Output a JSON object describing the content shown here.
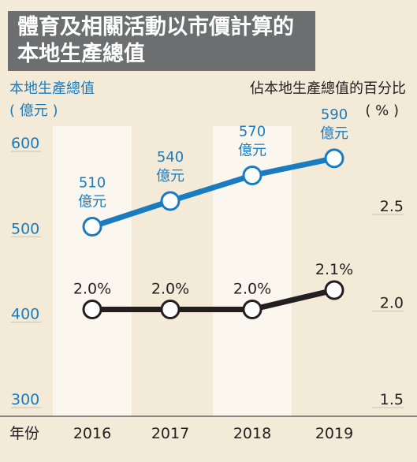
{
  "title_lines": [
    "體育及相關活動以市價計算的",
    "本地生產總值"
  ],
  "chart_data": {
    "type": "line",
    "title": "體育及相關活動以市價計算的本地生產總值",
    "x_axis_label": "年份",
    "categories": [
      "2016",
      "2017",
      "2018",
      "2019"
    ],
    "left_axis": {
      "label_line1": "本地生產總值",
      "label_line2": "( 億元 )",
      "range": [
        300,
        600
      ],
      "ticks": [
        "600",
        "500",
        "400",
        "300"
      ],
      "color": "#1a7cc0"
    },
    "right_axis": {
      "label_line1": "佔本地生產總值的百分比",
      "label_line2": "( % )",
      "range": [
        1.5,
        2.5
      ],
      "ticks": [
        "2.5",
        "2.0",
        "1.5"
      ],
      "color": "#231f20"
    },
    "series": [
      {
        "axis": "left",
        "values": [
          510,
          540,
          570,
          590
        ],
        "labels": [
          "510",
          "540",
          "570",
          "590"
        ],
        "unit": "億元",
        "color": "#1a7cc0"
      },
      {
        "axis": "right",
        "values": [
          2.0,
          2.0,
          2.0,
          2.1
        ],
        "labels": [
          "2.0%",
          "2.0%",
          "2.0%",
          "2.1%"
        ],
        "color": "#231f20"
      }
    ]
  }
}
